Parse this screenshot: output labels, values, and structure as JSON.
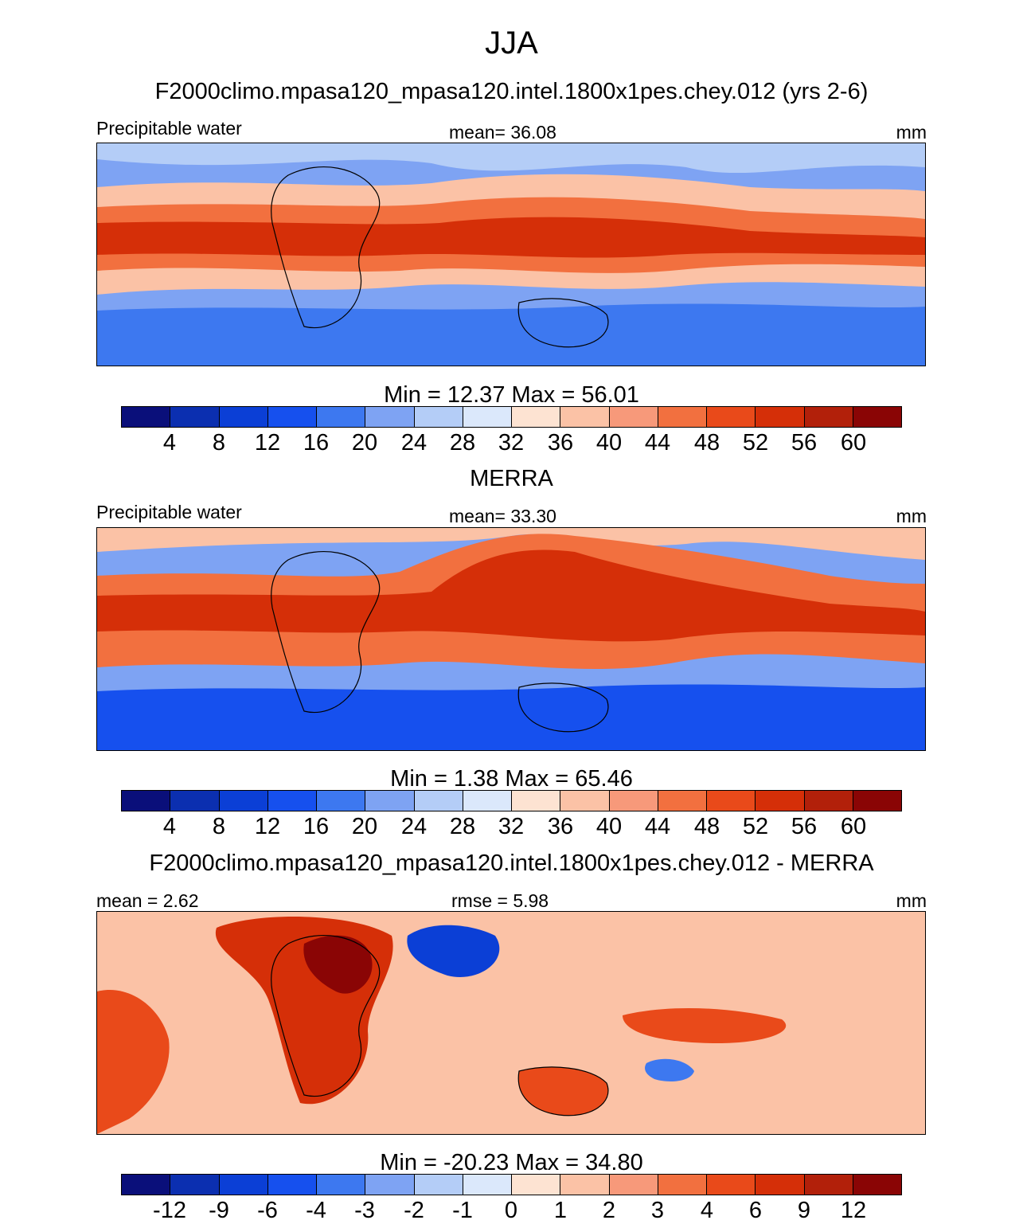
{
  "title": "JJA",
  "colors": {
    "base_scale": [
      "#0a0f7a",
      "#0b2fb0",
      "#0b3fd6",
      "#1650ee",
      "#3d78f0",
      "#7ea3f3",
      "#b4cdf7",
      "#dbe8fb",
      "#fde3d2",
      "#fbc2a6",
      "#f7997a",
      "#f2703f",
      "#e94a1a",
      "#d52f08",
      "#b2200a",
      "#8a0505"
    ],
    "diff_scale": [
      "#0a0f7a",
      "#0b2fb0",
      "#0b3fd6",
      "#1650ee",
      "#3d78f0",
      "#7ea3f3",
      "#b4cdf7",
      "#dbe8fb",
      "#fde3d2",
      "#fbc2a6",
      "#f7997a",
      "#f2703f",
      "#e94a1a",
      "#d52f08",
      "#b2200a",
      "#8a0505"
    ]
  },
  "panels": [
    {
      "title": "F2000climo.mpasa120_mpasa120.intel.1800x1pes.chey.012 (yrs 2-6)",
      "left_label": "Precipitable water",
      "center_label": "mean=  36.08",
      "units": "mm",
      "min_max": "Min =  12.37 Max =  56.01",
      "colorbar_labels": [
        "4",
        "8",
        "12",
        "16",
        "20",
        "24",
        "28",
        "32",
        "36",
        "40",
        "44",
        "48",
        "52",
        "56",
        "60"
      ]
    },
    {
      "title": "MERRA",
      "left_label": "Precipitable water",
      "center_label": "mean=  33.30",
      "units": "mm",
      "min_max": "Min =   1.38 Max =  65.46",
      "colorbar_labels": [
        "4",
        "8",
        "12",
        "16",
        "20",
        "24",
        "28",
        "32",
        "36",
        "40",
        "44",
        "48",
        "52",
        "56",
        "60"
      ]
    },
    {
      "title": "F2000climo.mpasa120_mpasa120.intel.1800x1pes.chey.012 - MERRA",
      "left_label": "mean =   2.62",
      "center_label": "rmse =   5.98",
      "units": "mm",
      "min_max": "Min = -20.23 Max =  34.80",
      "colorbar_labels": [
        "-12",
        "-9",
        "-6",
        "-4",
        "-3",
        "-2",
        "-1",
        "0",
        "1",
        "2",
        "3",
        "4",
        "6",
        "9",
        "12"
      ]
    }
  ]
}
